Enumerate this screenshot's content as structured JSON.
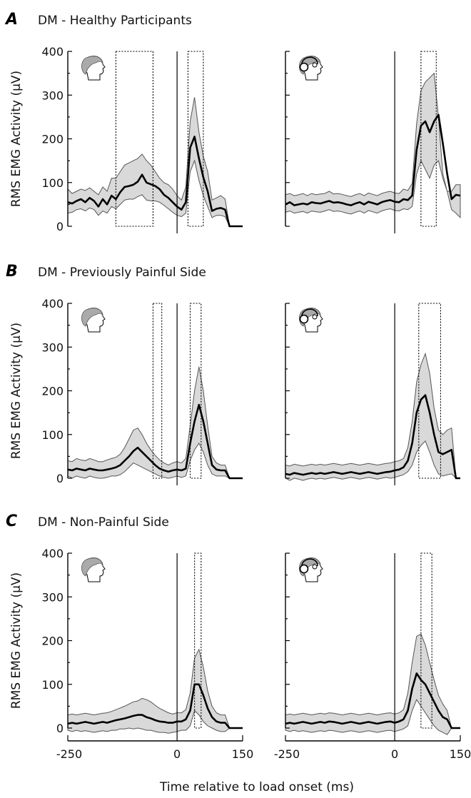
{
  "chart_data": [
    {
      "type": "line",
      "panel": "A",
      "title": "DM - Healthy Participants",
      "ylabel": "RMS EMG Activity (µV)",
      "ylim": [
        0,
        400
      ],
      "yticks": [
        "0",
        "100",
        "200",
        "300",
        "400"
      ],
      "xlim": [
        -250,
        150
      ],
      "subplots": [
        {
          "condition": "head-icon",
          "x": [
            -250,
            -240,
            -230,
            -220,
            -210,
            -200,
            -190,
            -180,
            -170,
            -160,
            -150,
            -140,
            -130,
            -120,
            -110,
            -100,
            -90,
            -80,
            -70,
            -60,
            -50,
            -40,
            -30,
            -20,
            -10,
            0,
            10,
            20,
            30,
            40,
            50,
            60,
            70,
            80,
            90,
            100,
            110,
            120,
            130,
            140,
            150
          ],
          "mean": [
            55,
            52,
            58,
            62,
            55,
            65,
            58,
            45,
            62,
            50,
            70,
            62,
            78,
            90,
            92,
            95,
            102,
            118,
            100,
            96,
            92,
            85,
            72,
            65,
            55,
            45,
            38,
            55,
            180,
            205,
            155,
            112,
            80,
            35,
            40,
            42,
            38,
            0,
            0,
            0,
            0
          ],
          "upper": [
            85,
            75,
            80,
            85,
            82,
            88,
            80,
            72,
            90,
            80,
            110,
            110,
            125,
            140,
            145,
            150,
            155,
            165,
            150,
            140,
            125,
            110,
            100,
            95,
            85,
            70,
            60,
            90,
            240,
            295,
            215,
            160,
            125,
            60,
            65,
            70,
            62,
            0,
            0,
            0,
            0
          ],
          "lower": [
            30,
            32,
            38,
            40,
            35,
            42,
            38,
            25,
            35,
            30,
            45,
            40,
            50,
            60,
            62,
            62,
            68,
            72,
            60,
            58,
            58,
            55,
            48,
            40,
            32,
            25,
            22,
            30,
            125,
            150,
            105,
            70,
            45,
            20,
            25,
            25,
            22,
            0,
            0,
            0,
            0
          ],
          "windows": [
            [
              -140,
              -55
            ],
            [
              25,
              60
            ]
          ]
        },
        {
          "condition": "headphones-icon",
          "x": [
            -250,
            -240,
            -230,
            -220,
            -210,
            -200,
            -190,
            -180,
            -170,
            -160,
            -150,
            -140,
            -130,
            -120,
            -110,
            -100,
            -90,
            -80,
            -70,
            -60,
            -50,
            -40,
            -30,
            -20,
            -10,
            0,
            10,
            20,
            30,
            40,
            50,
            60,
            70,
            80,
            90,
            100,
            110,
            120,
            130,
            140,
            150
          ],
          "mean": [
            50,
            55,
            48,
            50,
            52,
            50,
            55,
            53,
            52,
            55,
            58,
            54,
            55,
            53,
            50,
            48,
            52,
            55,
            50,
            56,
            53,
            50,
            55,
            58,
            60,
            56,
            55,
            62,
            60,
            70,
            175,
            230,
            240,
            215,
            240,
            255,
            190,
            120,
            62,
            72,
            70
          ],
          "upper": [
            72,
            75,
            70,
            72,
            75,
            70,
            75,
            72,
            74,
            75,
            80,
            74,
            75,
            73,
            70,
            68,
            72,
            75,
            70,
            76,
            73,
            70,
            75,
            78,
            80,
            76,
            75,
            85,
            82,
            98,
            235,
            310,
            330,
            340,
            350,
            250,
            120,
            80,
            80,
            95,
            95
          ],
          "lower": [
            32,
            35,
            30,
            32,
            34,
            30,
            35,
            33,
            32,
            35,
            38,
            34,
            35,
            33,
            30,
            28,
            32,
            35,
            30,
            36,
            33,
            30,
            35,
            38,
            40,
            36,
            35,
            40,
            38,
            45,
            120,
            150,
            130,
            110,
            140,
            150,
            110,
            80,
            38,
            30,
            20
          ],
          "windows": [
            [
              60,
              95
            ]
          ]
        }
      ]
    },
    {
      "type": "line",
      "panel": "B",
      "title": "DM - Previously Painful Side",
      "ylabel": "RMS EMG Activity (µV)",
      "ylim": [
        0,
        400
      ],
      "yticks": [
        "0",
        "100",
        "200",
        "300",
        "400"
      ],
      "xlim": [
        -250,
        150
      ],
      "subplots": [
        {
          "condition": "head-icon",
          "x": [
            -250,
            -240,
            -230,
            -220,
            -210,
            -200,
            -190,
            -180,
            -170,
            -160,
            -150,
            -140,
            -130,
            -120,
            -110,
            -100,
            -90,
            -80,
            -70,
            -60,
            -50,
            -40,
            -30,
            -20,
            -10,
            0,
            10,
            20,
            30,
            40,
            50,
            60,
            70,
            80,
            90,
            100,
            110,
            120,
            130,
            140,
            150
          ],
          "mean": [
            20,
            18,
            22,
            20,
            18,
            22,
            20,
            18,
            18,
            20,
            22,
            25,
            30,
            40,
            50,
            62,
            70,
            60,
            50,
            40,
            30,
            22,
            18,
            15,
            18,
            20,
            18,
            22,
            80,
            130,
            168,
            130,
            80,
            30,
            20,
            18,
            18,
            0,
            0,
            0,
            0
          ],
          "upper": [
            40,
            38,
            45,
            42,
            40,
            45,
            42,
            38,
            38,
            42,
            45,
            48,
            55,
            70,
            90,
            110,
            115,
            100,
            80,
            65,
            52,
            42,
            35,
            30,
            35,
            38,
            35,
            45,
            120,
            200,
            255,
            200,
            120,
            50,
            35,
            30,
            30,
            0,
            0,
            0,
            0
          ],
          "lower": [
            5,
            0,
            5,
            2,
            0,
            5,
            2,
            0,
            0,
            2,
            5,
            5,
            8,
            15,
            25,
            35,
            30,
            25,
            20,
            15,
            10,
            5,
            2,
            0,
            2,
            5,
            2,
            5,
            40,
            65,
            80,
            60,
            30,
            10,
            5,
            5,
            5,
            0,
            0,
            0,
            0
          ],
          "windows": [
            [
              -55,
              -35
            ],
            [
              30,
              55
            ]
          ]
        },
        {
          "condition": "headphones-icon",
          "x": [
            -250,
            -240,
            -230,
            -220,
            -210,
            -200,
            -190,
            -180,
            -170,
            -160,
            -150,
            -140,
            -130,
            -120,
            -110,
            -100,
            -90,
            -80,
            -70,
            -60,
            -50,
            -40,
            -30,
            -20,
            -10,
            0,
            10,
            20,
            30,
            40,
            50,
            60,
            70,
            80,
            90,
            100,
            110,
            120,
            130,
            140,
            150
          ],
          "mean": [
            10,
            8,
            12,
            10,
            8,
            10,
            12,
            10,
            12,
            10,
            12,
            14,
            12,
            10,
            12,
            14,
            12,
            10,
            12,
            14,
            12,
            10,
            12,
            14,
            15,
            18,
            20,
            25,
            40,
            80,
            150,
            180,
            190,
            150,
            100,
            60,
            55,
            60,
            65,
            0,
            0
          ],
          "upper": [
            30,
            28,
            32,
            30,
            28,
            30,
            32,
            30,
            32,
            30,
            32,
            34,
            32,
            30,
            32,
            34,
            32,
            30,
            32,
            34,
            32,
            30,
            32,
            34,
            35,
            38,
            40,
            45,
            70,
            130,
            220,
            260,
            285,
            240,
            160,
            110,
            100,
            110,
            115,
            0,
            0
          ],
          "lower": [
            0,
            -5,
            0,
            -2,
            -5,
            -2,
            0,
            -2,
            0,
            -2,
            0,
            2,
            0,
            -2,
            0,
            2,
            0,
            -2,
            0,
            2,
            0,
            -2,
            0,
            2,
            0,
            2,
            5,
            8,
            15,
            30,
            60,
            75,
            85,
            60,
            30,
            10,
            5,
            8,
            10,
            0,
            0
          ],
          "windows": [
            [
              55,
              105
            ]
          ]
        }
      ]
    },
    {
      "type": "line",
      "panel": "C",
      "title": "DM - Non-Painful Side",
      "ylabel": "RMS EMG Activity (µV)",
      "ylim": [
        0,
        400
      ],
      "yticks": [
        "0",
        "100",
        "200",
        "300",
        "400"
      ],
      "xlim": [
        -250,
        150
      ],
      "xticks": [
        "-250",
        "0",
        "150"
      ],
      "subplots": [
        {
          "condition": "head-icon",
          "x": [
            -250,
            -240,
            -230,
            -220,
            -210,
            -200,
            -190,
            -180,
            -170,
            -160,
            -150,
            -140,
            -130,
            -120,
            -110,
            -100,
            -90,
            -80,
            -70,
            -60,
            -50,
            -40,
            -30,
            -20,
            -10,
            0,
            10,
            20,
            30,
            40,
            50,
            60,
            70,
            80,
            90,
            100,
            110,
            120,
            130,
            140,
            150
          ],
          "mean": [
            10,
            12,
            10,
            12,
            14,
            12,
            10,
            12,
            14,
            12,
            15,
            18,
            20,
            22,
            25,
            28,
            30,
            30,
            25,
            22,
            18,
            15,
            14,
            12,
            12,
            15,
            15,
            20,
            40,
            100,
            100,
            75,
            45,
            25,
            15,
            12,
            12,
            0,
            0,
            0,
            0
          ],
          "upper": [
            30,
            32,
            30,
            32,
            34,
            32,
            30,
            32,
            34,
            35,
            38,
            42,
            46,
            50,
            55,
            60,
            62,
            68,
            65,
            60,
            52,
            45,
            40,
            35,
            32,
            35,
            35,
            42,
            80,
            160,
            180,
            140,
            85,
            50,
            35,
            30,
            30,
            0,
            0,
            0,
            0
          ],
          "lower": [
            -5,
            -8,
            -5,
            -8,
            -6,
            -8,
            -10,
            -8,
            -6,
            -8,
            -5,
            -5,
            -2,
            -2,
            0,
            -2,
            0,
            -2,
            -5,
            -5,
            -8,
            -10,
            -10,
            -12,
            -10,
            -8,
            -5,
            -5,
            5,
            40,
            30,
            15,
            5,
            0,
            -5,
            -8,
            -8,
            0,
            0,
            0,
            0
          ],
          "windows": [
            [
              40,
              55
            ]
          ]
        },
        {
          "condition": "headphones-icon",
          "x": [
            -250,
            -240,
            -230,
            -220,
            -210,
            -200,
            -190,
            -180,
            -170,
            -160,
            -150,
            -140,
            -130,
            -120,
            -110,
            -100,
            -90,
            -80,
            -70,
            -60,
            -50,
            -40,
            -30,
            -20,
            -10,
            0,
            10,
            20,
            30,
            40,
            50,
            60,
            70,
            80,
            90,
            100,
            110,
            120,
            130,
            140,
            150
          ],
          "mean": [
            10,
            12,
            10,
            12,
            14,
            12,
            10,
            12,
            14,
            12,
            15,
            14,
            12,
            10,
            12,
            14,
            12,
            10,
            12,
            14,
            12,
            10,
            12,
            14,
            15,
            12,
            15,
            20,
            40,
            90,
            125,
            110,
            100,
            80,
            60,
            40,
            25,
            20,
            0,
            0,
            0
          ],
          "upper": [
            30,
            32,
            30,
            32,
            34,
            32,
            30,
            32,
            34,
            32,
            35,
            34,
            32,
            30,
            32,
            34,
            32,
            30,
            32,
            34,
            32,
            30,
            32,
            34,
            35,
            32,
            35,
            42,
            80,
            150,
            210,
            215,
            190,
            150,
            110,
            75,
            55,
            40,
            0,
            0,
            0
          ],
          "lower": [
            -5,
            -8,
            -5,
            -8,
            -6,
            -8,
            -10,
            -8,
            -6,
            -8,
            -5,
            -6,
            -8,
            -10,
            -8,
            -6,
            -8,
            -10,
            -8,
            -6,
            -8,
            -10,
            -8,
            -6,
            -5,
            -8,
            -5,
            -2,
            5,
            40,
            65,
            50,
            35,
            20,
            5,
            -5,
            -10,
            -15,
            0,
            0,
            0
          ],
          "windows": [
            [
              60,
              85
            ]
          ]
        }
      ]
    }
  ],
  "xlabel": "Time relative to load onset (ms)",
  "icons": {
    "condition_1": "head-profile-icon",
    "condition_2": "head-with-headphones-icon"
  },
  "colors": {
    "band_fill": "#d9d9d9",
    "band_stroke": "#555555",
    "mean_line": "#000000"
  }
}
